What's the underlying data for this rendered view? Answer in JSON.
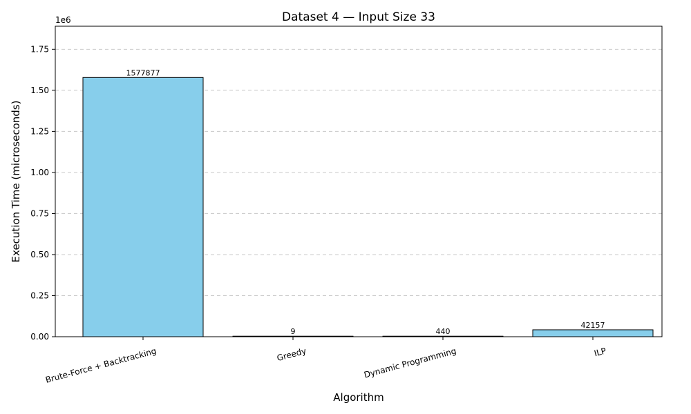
{
  "chart_data": {
    "type": "bar",
    "title": "Dataset 4 — Input Size 33",
    "xlabel": "Algorithm",
    "ylabel": "Execution Time (microseconds)",
    "y_offset_label": "1e6",
    "categories": [
      "Brute-Force + Backtracking",
      "Greedy",
      "Dynamic Programming",
      "ILP"
    ],
    "values": [
      1577877,
      9,
      440,
      42157
    ],
    "data_labels": [
      "1577877",
      "9",
      "440",
      "42157"
    ],
    "ylim": [
      0,
      1890000
    ],
    "yticks": [
      0,
      250000,
      500000,
      750000,
      1000000,
      1250000,
      1500000,
      1750000
    ],
    "ytick_labels": [
      "0.00",
      "0.25",
      "0.50",
      "0.75",
      "1.00",
      "1.25",
      "1.50",
      "1.75"
    ],
    "grid": "y-dashed",
    "bar_color": "#87ceeb",
    "bar_edge_color": "#000000",
    "grid_color": "#c8c8c8"
  }
}
